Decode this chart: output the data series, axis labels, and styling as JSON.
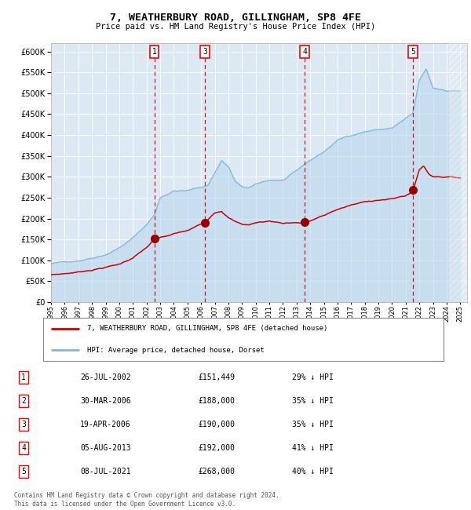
{
  "title": "7, WEATHERBURY ROAD, GILLINGHAM, SP8 4FE",
  "subtitle": "Price paid vs. HM Land Registry's House Price Index (HPI)",
  "plot_bg_color": "#dce9f5",
  "hpi_color": "#7fb8d8",
  "hpi_fill_color": "#b8d8ed",
  "price_color": "#cc0000",
  "marker_color": "#990000",
  "dashed_color": "#cc0000",
  "legend_label_red": "7, WEATHERBURY ROAD, GILLINGHAM, SP8 4FE (detached house)",
  "legend_label_blue": "HPI: Average price, detached house, Dorset",
  "transactions": [
    {
      "num": 1,
      "date": "26-JUL-2002",
      "price": 151449,
      "pct": "29%",
      "year": 2002.57
    },
    {
      "num": 2,
      "date": "30-MAR-2006",
      "price": 188000,
      "pct": "35%",
      "year": 2006.24
    },
    {
      "num": 3,
      "date": "19-APR-2006",
      "price": 190000,
      "pct": "35%",
      "year": 2006.29
    },
    {
      "num": 4,
      "date": "05-AUG-2013",
      "price": 192000,
      "pct": "41%",
      "year": 2013.59
    },
    {
      "num": 5,
      "date": "08-JUL-2021",
      "price": 268000,
      "pct": "40%",
      "year": 2021.52
    }
  ],
  "show_markers": [
    1,
    3,
    4,
    5
  ],
  "footer": "Contains HM Land Registry data © Crown copyright and database right 2024.\nThis data is licensed under the Open Government Licence v3.0.",
  "ylim": [
    0,
    620000
  ],
  "yticks": [
    0,
    50000,
    100000,
    150000,
    200000,
    250000,
    300000,
    350000,
    400000,
    450000,
    500000,
    550000,
    600000
  ],
  "hpi_anchors_x": [
    1995.0,
    1996.0,
    1997.0,
    1998.0,
    1999.0,
    2000.0,
    2001.0,
    2002.0,
    2002.57,
    2003.0,
    2004.0,
    2005.0,
    2006.0,
    2006.5,
    2007.5,
    2008.0,
    2008.5,
    2009.0,
    2009.5,
    2010.0,
    2011.0,
    2012.0,
    2013.0,
    2013.59,
    2014.0,
    2015.0,
    2016.0,
    2017.0,
    2018.0,
    2019.0,
    2020.0,
    2021.0,
    2021.52,
    2022.0,
    2022.5,
    2023.0,
    2024.0,
    2025.0
  ],
  "hpi_anchors_y": [
    92000,
    95000,
    100000,
    108000,
    118000,
    135000,
    158000,
    190000,
    213000,
    255000,
    272000,
    272000,
    280000,
    285000,
    345000,
    330000,
    295000,
    280000,
    278000,
    285000,
    295000,
    295000,
    315000,
    330000,
    340000,
    360000,
    388000,
    400000,
    410000,
    415000,
    418000,
    440000,
    450000,
    530000,
    555000,
    510000,
    505000,
    505000
  ],
  "price_anchors_x": [
    1995.0,
    1996.0,
    1997.0,
    1998.0,
    1999.0,
    2000.0,
    2001.0,
    2002.0,
    2002.57,
    2003.5,
    2004.0,
    2005.0,
    2006.0,
    2006.29,
    2007.0,
    2007.5,
    2008.0,
    2008.5,
    2009.0,
    2009.5,
    2010.0,
    2011.0,
    2012.0,
    2013.0,
    2013.59,
    2014.0,
    2015.0,
    2016.0,
    2017.0,
    2018.0,
    2019.0,
    2020.0,
    2021.0,
    2021.52,
    2022.0,
    2022.3,
    2022.7,
    2023.0,
    2024.0,
    2025.0
  ],
  "price_anchors_y": [
    65000,
    68000,
    72000,
    78000,
    85000,
    92000,
    108000,
    132000,
    151449,
    158000,
    163000,
    170000,
    185000,
    190000,
    215000,
    220000,
    205000,
    195000,
    188000,
    187000,
    192000,
    196000,
    192000,
    194000,
    192000,
    198000,
    210000,
    225000,
    235000,
    242000,
    248000,
    250000,
    258000,
    268000,
    320000,
    330000,
    310000,
    305000,
    305000,
    303000
  ]
}
